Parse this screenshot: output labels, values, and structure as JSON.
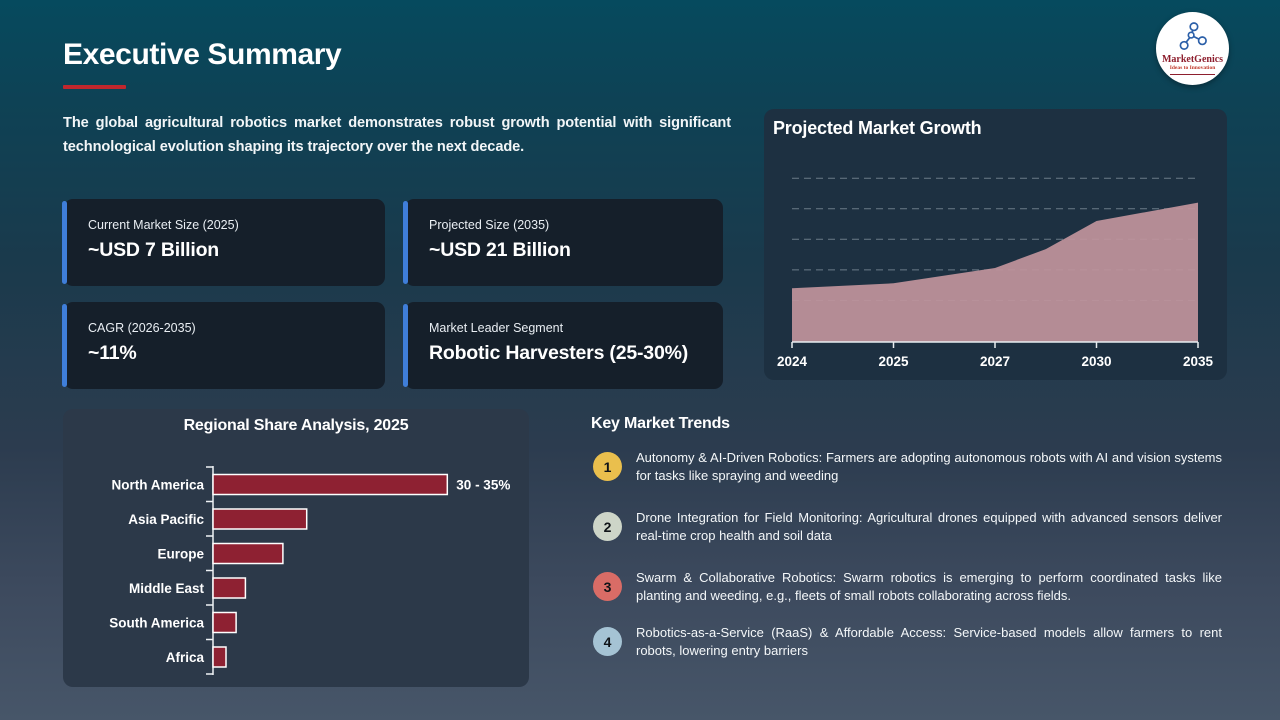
{
  "slide": {
    "title": "Executive Summary",
    "intro": "The global agricultural robotics market demonstrates robust growth potential with significant technological evolution shaping its trajectory over the next decade."
  },
  "logo": {
    "name": "MarketGenics",
    "tagline": "Ideas to Innovation",
    "icon": "network-molecule-icon",
    "icon_color": "#2b5fa8",
    "name_color": "#8e1f2e"
  },
  "stat_cards": [
    {
      "label": "Current Market Size (2025)",
      "value": "~USD 7 Billion"
    },
    {
      "label": "Projected Size (2035)",
      "value": "~USD 21 Billion"
    },
    {
      "label": "CAGR (2026-2035)",
      "value": "~11%"
    },
    {
      "label": "Market Leader Segment",
      "value": "Robotic Harvesters (25-30%)"
    }
  ],
  "chart_data": [
    {
      "type": "area",
      "title": "Projected Market Growth",
      "x": [
        "2024",
        "2025",
        "2027",
        "2030",
        "2035"
      ],
      "values": [
        7,
        7.8,
        10.3,
        18,
        21
      ],
      "curve_points": [
        {
          "t": 0,
          "v": 7
        },
        {
          "t": 1,
          "v": 7.8
        },
        {
          "t": 2,
          "v": 10.3
        },
        {
          "t": 2.5,
          "v": 13.4
        },
        {
          "t": 3,
          "v": 18
        },
        {
          "t": 4,
          "v": 21
        }
      ],
      "ylim": [
        -1.8,
        26.5
      ],
      "gridlines": [
        5,
        10,
        15,
        20,
        25
      ],
      "grid_style": "dashed",
      "legend": "none",
      "area_color": "#c0939c",
      "axis_color": "#e8edf1",
      "grid_color": "#b9c6d2"
    },
    {
      "type": "bar",
      "orientation": "horizontal",
      "title": "Regional Share Analysis, 2025",
      "categories": [
        "North America",
        "Asia Pacific",
        "Europe",
        "Middle East",
        "South America",
        "Africa"
      ],
      "values": [
        32.5,
        13,
        9.7,
        4.5,
        3.2,
        1.8
      ],
      "value_labels": [
        "30 - 35%",
        "",
        "",
        "",
        "",
        ""
      ],
      "xlim": [
        0,
        43
      ],
      "bar_color": "#8e2132",
      "bar_border_color": "#ffffff",
      "axis_color": "#eef2f5"
    }
  ],
  "trends": {
    "heading": "Key Market Trends",
    "items": [
      {
        "num": "1",
        "color": "#eabf4d",
        "text": "Autonomy & AI-Driven Robotics: Farmers are adopting autonomous robots with AI and vision systems for tasks like spraying and weeding"
      },
      {
        "num": "2",
        "color": "#cdd5c8",
        "text": "Drone Integration for Field Monitoring: Agricultural drones equipped with advanced sensors deliver real-time crop health and soil data"
      },
      {
        "num": "3",
        "color": "#d96c66",
        "text": "Swarm & Collaborative Robotics: Swarm robotics is emerging to perform coordinated tasks like planting and weeding, e.g., fleets of small robots collaborating across fields."
      },
      {
        "num": "4",
        "color": "#a5c3d4",
        "text": "Robotics-as-a-Service (RaaS) & Affordable Access: Service-based models allow farmers to rent robots, lowering entry barriers"
      }
    ]
  },
  "colors": {
    "title_underline": "#c1272d",
    "stat_accent": "#3f7ed9",
    "stat_card_bg": "#151f2a",
    "growth_card_bg": "#1d3041",
    "regional_card_bg": "#2c3949",
    "bg_top": "#064a5e",
    "bg_bottom": "#475669"
  }
}
